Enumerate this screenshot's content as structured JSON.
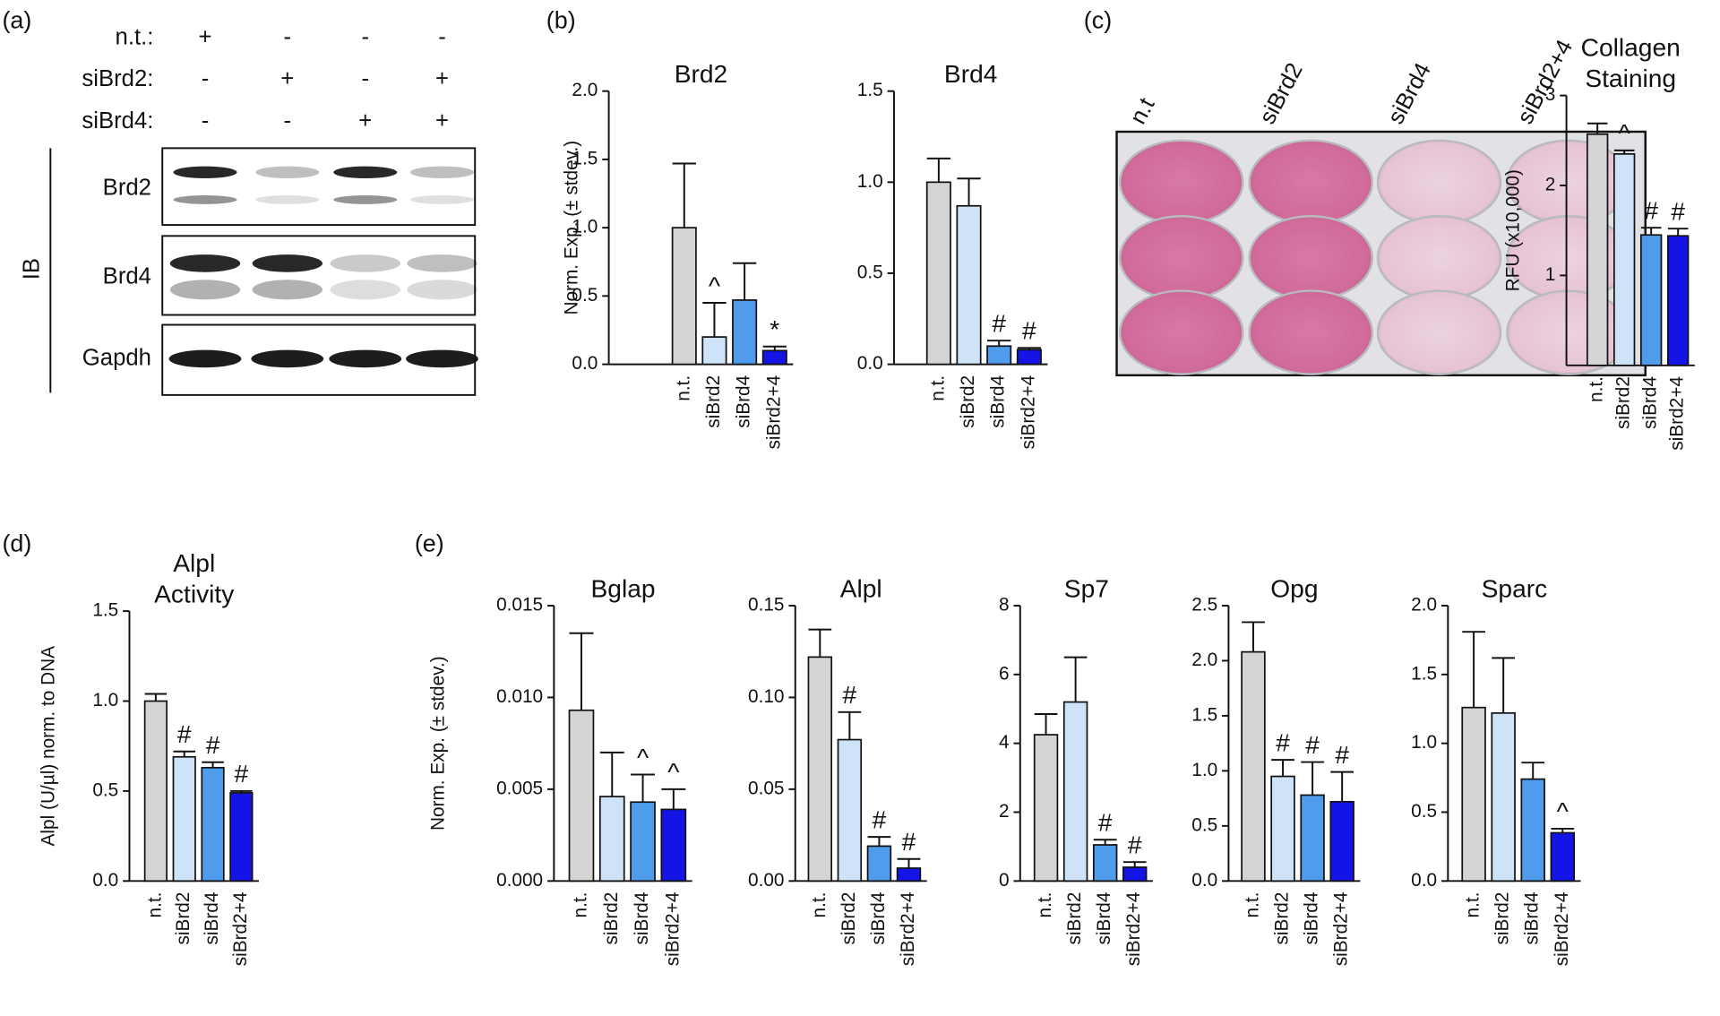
{
  "panels": [
    "(a)",
    "(b)",
    "(c)",
    "(d)",
    "(e)"
  ],
  "blot": {
    "conditions": [
      {
        "label": "n.t.:",
        "signs": [
          "+",
          "-",
          "-",
          "-"
        ]
      },
      {
        "label": "siBrd2:",
        "signs": [
          "-",
          "+",
          "-",
          "+"
        ]
      },
      {
        "label": "siBrd4:",
        "signs": [
          "-",
          "-",
          "+",
          "+"
        ]
      }
    ],
    "ib": "IB",
    "rows": [
      "Brd2",
      "Brd4",
      "Gapdh"
    ]
  },
  "plate": {
    "labels": [
      "n.t",
      "siBrd2",
      "siBrd4",
      "siBrd2+4"
    ]
  },
  "chart_data": [
    {
      "type": "bar",
      "title": [
        "Brd2"
      ],
      "ylabel": "Norm. Exp. (± stdev.)",
      "categories": [
        "n.t.",
        "siBrd2",
        "siBrd4",
        "siBrd2+4"
      ],
      "colors": [
        "#d4d4d4",
        "#cfe3f8",
        "#4f9cec",
        "#1414e6"
      ],
      "values": [
        1.0,
        0.2,
        0.47,
        0.1
      ],
      "errors": [
        0.47,
        0.25,
        0.27,
        0.03
      ],
      "markers": [
        null,
        "^",
        null,
        "*"
      ],
      "ylim": [
        0,
        2
      ],
      "yticks": [
        {
          "value": 0,
          "label": "0.0"
        },
        0.5,
        {
          "value": 1,
          "label": "1.0"
        },
        1.5,
        {
          "value": 2,
          "label": "2.0"
        }
      ]
    },
    {
      "type": "bar",
      "title": [
        "Brd4"
      ],
      "categories": [
        "n.t.",
        "siBrd2",
        "siBrd4",
        "siBrd2+4"
      ],
      "colors": [
        "#d4d4d4",
        "#cfe3f8",
        "#4f9cec",
        "#1414e6"
      ],
      "values": [
        1.0,
        0.87,
        0.1,
        0.08
      ],
      "errors": [
        0.13,
        0.15,
        0.03,
        0.01
      ],
      "markers": [
        null,
        null,
        "#",
        "#"
      ],
      "ylim": [
        0,
        1.5
      ],
      "yticks": [
        {
          "value": 0,
          "label": "0.0"
        },
        0.5,
        {
          "value": 1,
          "label": "1.0"
        },
        1.5
      ]
    },
    {
      "type": "bar",
      "title": [
        "Collagen",
        "Staining"
      ],
      "ylabel": "RFU (x10,000)",
      "categories": [
        "n.t.",
        "siBrd2",
        "siBrd4",
        "siBrd2+4"
      ],
      "colors": [
        "#d4d4d4",
        "#cfe3f8",
        "#4f9cec",
        "#1414e6"
      ],
      "values": [
        2.57,
        2.35,
        1.45,
        1.44
      ],
      "errors": [
        0.12,
        0.04,
        0.08,
        0.08
      ],
      "markers": [
        null,
        "^",
        "#",
        "#"
      ],
      "ylim": [
        0,
        3
      ],
      "yticks": [
        1,
        2,
        3
      ]
    },
    {
      "type": "bar",
      "title": [
        "Alpl",
        "Activity"
      ],
      "ylabel": "Alpl (U/µl) norm. to DNA",
      "categories": [
        "n.t.",
        "siBrd2",
        "siBrd4",
        "siBrd2+4"
      ],
      "colors": [
        "#d4d4d4",
        "#cfe3f8",
        "#4f9cec",
        "#1414e6"
      ],
      "values": [
        1.0,
        0.69,
        0.63,
        0.49
      ],
      "errors": [
        0.04,
        0.03,
        0.03,
        0.01
      ],
      "markers": [
        null,
        "#",
        "#",
        "#"
      ],
      "ylim": [
        0,
        1.5
      ],
      "yticks": [
        {
          "value": 0,
          "label": "0.0"
        },
        0.5,
        {
          "value": 1,
          "label": "1.0"
        },
        1.5
      ]
    },
    {
      "type": "bar",
      "title": [
        "Bglap"
      ],
      "ylabel": "Norm. Exp. (± stdev.)",
      "categories": [
        "n.t.",
        "siBrd2",
        "siBrd4",
        "siBrd2+4"
      ],
      "colors": [
        "#d4d4d4",
        "#cfe3f8",
        "#4f9cec",
        "#1414e6"
      ],
      "values": [
        0.0093,
        0.0046,
        0.0043,
        0.0039
      ],
      "errors": [
        0.0042,
        0.0024,
        0.0015,
        0.0011
      ],
      "markers": [
        null,
        null,
        "^",
        "^"
      ],
      "ylim": [
        0,
        0.015
      ],
      "yticks": [
        {
          "value": 0,
          "label": "0.000"
        },
        0.005,
        {
          "value": 0.01,
          "label": "0.010"
        },
        0.015
      ]
    },
    {
      "type": "bar",
      "title": [
        "Alpl"
      ],
      "categories": [
        "n.t.",
        "siBrd2",
        "siBrd4",
        "siBrd2+4"
      ],
      "colors": [
        "#d4d4d4",
        "#cfe3f8",
        "#4f9cec",
        "#1414e6"
      ],
      "values": [
        0.122,
        0.077,
        0.019,
        0.007
      ],
      "errors": [
        0.015,
        0.015,
        0.005,
        0.005
      ],
      "markers": [
        null,
        "#",
        "#",
        "#"
      ],
      "ylim": [
        0,
        0.15
      ],
      "yticks": [
        {
          "value": 0,
          "label": "0.00"
        },
        0.05,
        {
          "value": 0.1,
          "label": "0.10"
        },
        0.15
      ]
    },
    {
      "type": "bar",
      "title": [
        "Sp7"
      ],
      "categories": [
        "n.t.",
        "siBrd2",
        "siBrd4",
        "siBrd2+4"
      ],
      "colors": [
        "#d4d4d4",
        "#cfe3f8",
        "#4f9cec",
        "#1414e6"
      ],
      "values": [
        4.25,
        5.2,
        1.05,
        0.4
      ],
      "errors": [
        0.6,
        1.3,
        0.15,
        0.15
      ],
      "markers": [
        null,
        null,
        "#",
        "#"
      ],
      "ylim": [
        0,
        8
      ],
      "yticks": [
        0,
        2,
        4,
        6,
        8
      ]
    },
    {
      "type": "bar",
      "title": [
        "Opg"
      ],
      "categories": [
        "n.t.",
        "siBrd2",
        "siBrd4",
        "siBrd2+4"
      ],
      "colors": [
        "#d4d4d4",
        "#cfe3f8",
        "#4f9cec",
        "#1414e6"
      ],
      "values": [
        2.08,
        0.95,
        0.78,
        0.72
      ],
      "errors": [
        0.27,
        0.15,
        0.3,
        0.27
      ],
      "markers": [
        null,
        "#",
        "#",
        "#"
      ],
      "ylim": [
        0,
        2.5
      ],
      "yticks": [
        {
          "value": 0,
          "label": "0.0"
        },
        0.5,
        {
          "value": 1,
          "label": "1.0"
        },
        1.5,
        {
          "value": 2,
          "label": "2.0"
        },
        2.5
      ]
    },
    {
      "type": "bar",
      "title": [
        "Sparc"
      ],
      "categories": [
        "n.t.",
        "siBrd2",
        "siBrd4",
        "siBrd2+4"
      ],
      "colors": [
        "#d4d4d4",
        "#cfe3f8",
        "#4f9cec",
        "#1414e6"
      ],
      "values": [
        1.26,
        1.22,
        0.74,
        0.35
      ],
      "errors": [
        0.55,
        0.4,
        0.12,
        0.03
      ],
      "markers": [
        null,
        null,
        null,
        "^"
      ],
      "ylim": [
        0,
        2
      ],
      "yticks": [
        {
          "value": 0,
          "label": "0.0"
        },
        0.5,
        {
          "value": 1,
          "label": "1.0"
        },
        1.5,
        {
          "value": 2,
          "label": "2.0"
        }
      ]
    }
  ]
}
